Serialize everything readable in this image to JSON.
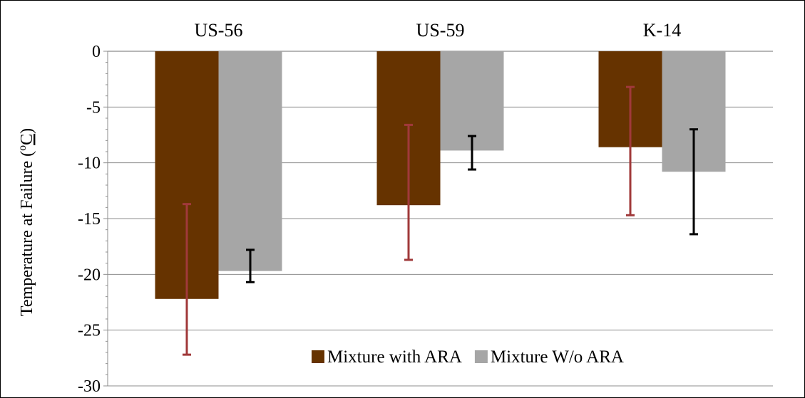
{
  "chart_data": {
    "type": "bar",
    "categories": [
      "US-56",
      "US-59",
      "K-14"
    ],
    "series": [
      {
        "name": "Mixture with ARA",
        "color": "#663300",
        "error_color": "#a0393a",
        "values": [
          -22.2,
          -13.8,
          -8.6
        ],
        "error_low": [
          -27.2,
          -18.7,
          -14.7
        ],
        "error_high": [
          -13.7,
          -6.6,
          -3.2
        ]
      },
      {
        "name": "Mixture W/o ARA",
        "color": "#a6a6a6",
        "error_color": "#000000",
        "values": [
          -19.7,
          -8.9,
          -10.8
        ],
        "error_low": [
          -20.7,
          -10.6,
          -16.4
        ],
        "error_high": [
          -17.8,
          -7.6,
          -7.0
        ]
      }
    ],
    "ylabel_parts": {
      "main": "Temperature at Failure (",
      "sup": "o",
      "unit": "C",
      "close": ")"
    },
    "ylim": [
      -30,
      0
    ],
    "yticks": [
      0,
      -5,
      -10,
      -15,
      -20,
      -25,
      -30
    ],
    "categories_position": "top",
    "grid": true,
    "legend_position": "bottom-right"
  }
}
